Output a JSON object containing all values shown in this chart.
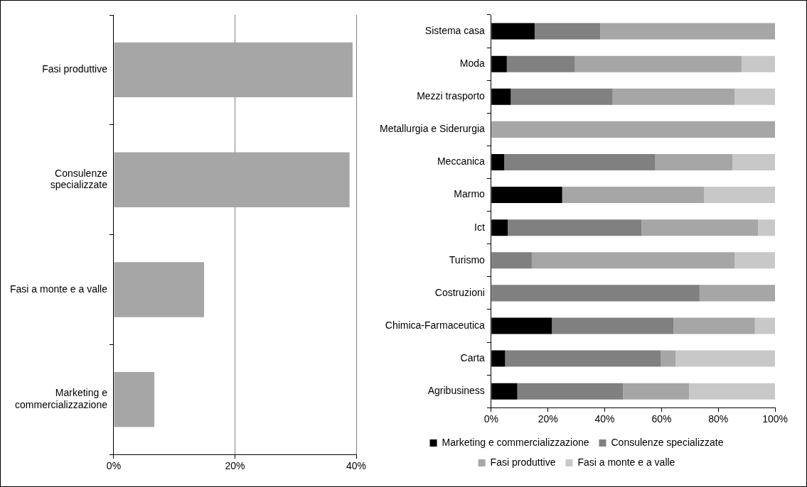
{
  "chart_data": [
    {
      "type": "bar",
      "orientation": "horizontal",
      "categories": [
        "Fasi produttive",
        "Consulenze specializzate",
        "Fasi a monte e a valle",
        "Marketing e commercializzazione"
      ],
      "values": [
        39.4,
        38.9,
        14.9,
        6.7
      ],
      "color": "#a6a6a6",
      "xlim": [
        0,
        40
      ],
      "xticks": [
        {
          "value": 0,
          "label": "0%"
        },
        {
          "value": 20,
          "label": "20%"
        },
        {
          "value": 40,
          "label": "40%"
        }
      ],
      "grid": "x"
    },
    {
      "type": "bar",
      "orientation": "horizontal",
      "stacked": true,
      "categories": [
        "Sistema casa",
        "Moda",
        "Mezzi trasporto",
        "Metallurgia e Siderurgia",
        "Meccanica",
        "Marmo",
        "Ict",
        "Turismo",
        "Costruzioni",
        "Chimica-Farmaceutica",
        "Carta",
        "Agribusiness"
      ],
      "series": [
        {
          "name": "Marketing e commercializzazione",
          "color": "#000000",
          "values": [
            15.3,
            5.5,
            6.9,
            0,
            4.6,
            25,
            5.8,
            0,
            0,
            21.4,
            4.9,
            9.2
          ]
        },
        {
          "name": "Consulenze specializzate",
          "color": "#808080",
          "values": [
            23.1,
            24,
            35.9,
            0,
            53.2,
            0,
            47.1,
            14.3,
            73.4,
            42.9,
            54.9,
            37.3
          ]
        },
        {
          "name": "Fasi produttive",
          "color": "#a6a6a6",
          "values": [
            61.6,
            58.7,
            43,
            100,
            27.2,
            50,
            41.1,
            71.4,
            26.6,
            28.6,
            5.2,
            23.2
          ]
        },
        {
          "name": "Fasi a monte e a valle",
          "color": "#c8c8c8",
          "values": [
            0,
            11.8,
            14.2,
            0,
            15,
            25,
            6,
            14.3,
            0,
            7.1,
            35,
            30.3
          ]
        }
      ],
      "xlim": [
        0,
        100
      ],
      "xticks": [
        {
          "value": 0,
          "label": "0%"
        },
        {
          "value": 20,
          "label": "20%"
        },
        {
          "value": 40,
          "label": "40%"
        },
        {
          "value": 60,
          "label": "60%"
        },
        {
          "value": 80,
          "label": "80%"
        },
        {
          "value": 100,
          "label": "100%"
        }
      ],
      "legend": "bottom"
    }
  ]
}
